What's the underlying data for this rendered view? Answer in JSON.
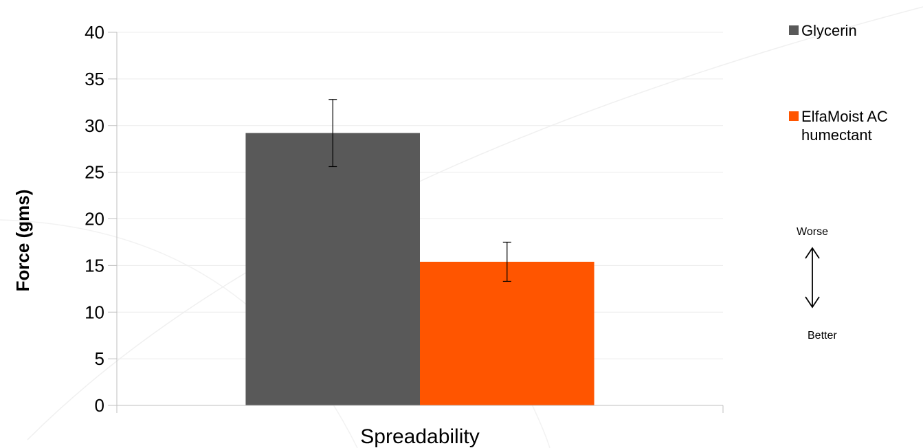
{
  "chart_data": {
    "type": "bar",
    "categories": [
      "Spreadability"
    ],
    "series": [
      {
        "name": "Glycerin",
        "values": [
          29.2
        ],
        "error": [
          3.6
        ],
        "color": "#595959"
      },
      {
        "name": "ElfaMoist AC humectant",
        "values": [
          15.4
        ],
        "error": [
          2.1
        ],
        "color": "#ff5500"
      }
    ],
    "xlabel": "Spreadability",
    "ylabel": "Force (gms)",
    "ylim": [
      0,
      40
    ],
    "yticks": [
      "0",
      "5",
      "10",
      "15",
      "20",
      "25",
      "30",
      "35",
      "40"
    ],
    "grid": true,
    "legend_position": "top-right",
    "legend_lines": [
      [
        "Glycerin"
      ],
      [
        "ElfaMoist AC",
        "humectant"
      ]
    ],
    "annotations": {
      "top": "Worse",
      "bottom": "Better"
    }
  }
}
